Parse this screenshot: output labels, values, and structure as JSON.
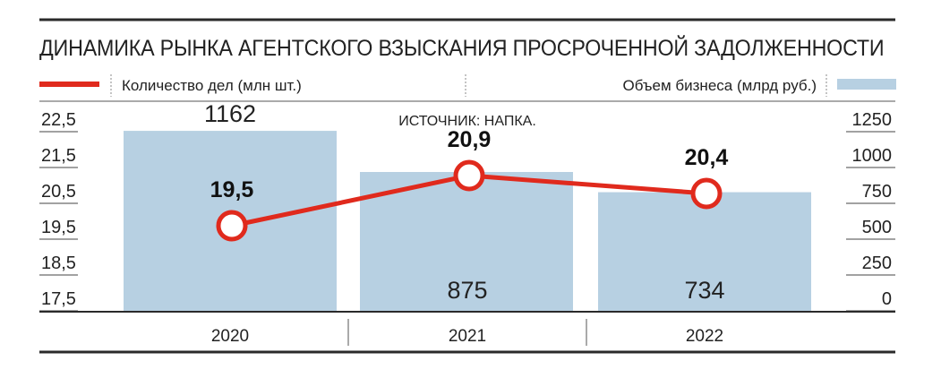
{
  "chart_data": {
    "type": "bar+line",
    "title": "ДИНАМИКА РЫНКА АГЕНТСКОГО ВЗЫСКАНИЯ ПРОСРОЧЕННОЙ ЗАДОЛЖЕННОСТИ",
    "source": "ИСТОЧНИК: НАПКА.",
    "categories": [
      "2020",
      "2021",
      "2022"
    ],
    "line_series": {
      "name": "Количество дел (млн шт.)",
      "values": [
        19.5,
        20.9,
        20.4
      ],
      "labels": [
        "19,5",
        "20,9",
        "20,4"
      ],
      "color": "#e02a1d",
      "axis": "left"
    },
    "bar_series": {
      "name": "Объем бизнеса (млрд руб.)",
      "values": [
        1162,
        875,
        734
      ],
      "labels": [
        "1162",
        "875",
        "734"
      ],
      "color": "#b7d0e2",
      "axis": "right"
    },
    "left_axis": {
      "ticks": [
        "22,5",
        "21,5",
        "20,5",
        "19,5",
        "18,5",
        "17,5"
      ],
      "min": 17.5,
      "max": 22.5
    },
    "right_axis": {
      "ticks": [
        "1250",
        "1000",
        "750",
        "500",
        "250",
        "0"
      ],
      "min": 0,
      "max": 1250
    },
    "legend_placement": "top"
  }
}
